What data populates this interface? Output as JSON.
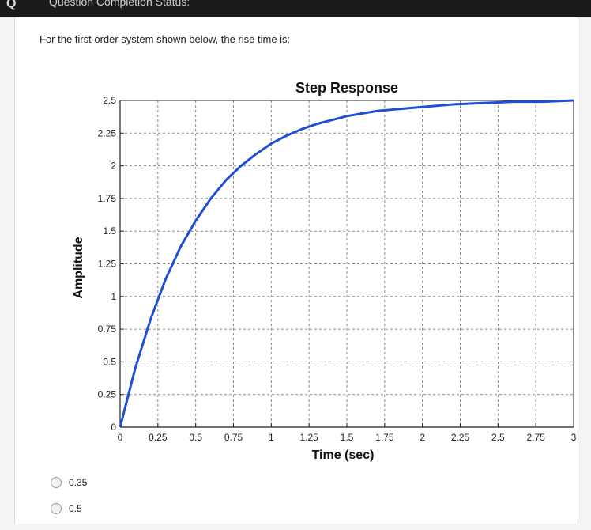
{
  "header": {
    "status_label": "Question Completion Status:"
  },
  "question": {
    "text": "For the  first order  system shown below, the rise time is:"
  },
  "chart_data": {
    "type": "line",
    "title": "Step Response",
    "xlabel": "Time (sec)",
    "ylabel": "Amplitude",
    "xlim": [
      0,
      3
    ],
    "ylim": [
      0,
      2.5
    ],
    "xticks": [
      0,
      0.25,
      0.5,
      0.75,
      1,
      1.25,
      1.5,
      1.75,
      2,
      2.25,
      2.5,
      2.75,
      3
    ],
    "xtick_labels": [
      "0",
      "0.25",
      "0.5",
      "0.75",
      "1",
      "1.25",
      "1.5",
      "1.75",
      "2",
      "2.25",
      "2.5",
      "2.75",
      "3"
    ],
    "yticks": [
      0,
      0.25,
      0.5,
      0.75,
      1,
      1.25,
      1.5,
      1.75,
      2,
      2.25,
      2.5
    ],
    "ytick_labels": [
      "0",
      "0.25",
      "0.5",
      "0.75",
      "1",
      "1.25",
      "1.5",
      "1.75",
      "2",
      "2.25",
      "2.5"
    ],
    "grid": true,
    "line_color": "#1f4fd6",
    "series": [
      {
        "x": [
          0,
          0.1,
          0.2,
          0.3,
          0.4,
          0.5,
          0.6,
          0.7,
          0.8,
          0.9,
          1.0,
          1.1,
          1.2,
          1.3,
          1.4,
          1.5,
          1.6,
          1.7,
          1.8,
          1.9,
          2.0,
          2.2,
          2.4,
          2.6,
          2.8,
          3.0
        ],
        "values": [
          0,
          0.45,
          0.82,
          1.13,
          1.38,
          1.58,
          1.75,
          1.89,
          2.0,
          2.09,
          2.17,
          2.23,
          2.28,
          2.32,
          2.35,
          2.38,
          2.4,
          2.42,
          2.43,
          2.44,
          2.45,
          2.47,
          2.48,
          2.49,
          2.49,
          2.5
        ]
      }
    ]
  },
  "answers": {
    "options": [
      {
        "label": "0.35"
      },
      {
        "label": "0.5"
      }
    ]
  }
}
